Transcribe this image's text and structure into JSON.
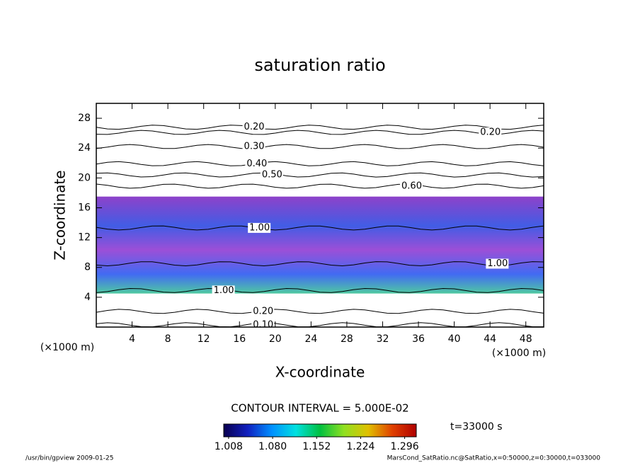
{
  "chart_data": {
    "type": "contour",
    "title": "saturation ratio",
    "x_label": "X-coordinate",
    "y_label": "Z-coordinate",
    "x_unit": "(×1000 m)",
    "y_unit": "(×1000 m)",
    "xlim": [
      0,
      50
    ],
    "xticks": [
      4,
      8,
      12,
      16,
      20,
      24,
      28,
      32,
      36,
      40,
      44,
      48
    ],
    "ylim": [
      0,
      30
    ],
    "yticks": [
      4,
      8,
      12,
      16,
      20,
      24,
      28
    ],
    "contour_interval": "CONTOUR INTERVAL = 5.000E-02",
    "time": "t=33000 s",
    "shaded_zlim": [
      4.5,
      17.5
    ],
    "contour_labels": [
      {
        "x": 16.5,
        "z": 26.8,
        "value": 0.2,
        "label": "0.20"
      },
      {
        "x": 42.9,
        "z": 26.1,
        "value": 0.2,
        "label": "0.20"
      },
      {
        "x": 16.5,
        "z": 24.2,
        "value": 0.3,
        "label": "0.30"
      },
      {
        "x": 16.8,
        "z": 21.9,
        "value": 0.4,
        "label": "0.40"
      },
      {
        "x": 18.5,
        "z": 20.4,
        "value": 0.5,
        "label": "0.50"
      },
      {
        "x": 34.1,
        "z": 18.9,
        "value": 0.6,
        "label": "0.60"
      },
      {
        "x": 17.1,
        "z": 13.3,
        "value": 1,
        "label": "1.00"
      },
      {
        "x": 43.7,
        "z": 8.5,
        "value": 1,
        "label": "1.00"
      },
      {
        "x": 13.1,
        "z": 4.9,
        "value": 1,
        "label": "1.00"
      },
      {
        "x": 17.5,
        "z": 2.1,
        "value": 0.2,
        "label": "0.20"
      },
      {
        "x": 17.5,
        "z": 0.3,
        "value": 0.1,
        "label": "0.10"
      }
    ],
    "colorbar": {
      "lim": [
        1.0,
        1.315
      ],
      "colors": [
        "#0a0050",
        "#1020c0",
        "#0090ff",
        "#00e0e0",
        "#00c040",
        "#90e020",
        "#e0c000",
        "#e04000",
        "#b00000"
      ],
      "ticks": [
        1.008,
        {
          "value": 1.08,
          "label": "1.080"
        },
        1.152,
        1.224,
        1.296
      ]
    },
    "footer_left": "/usr/bin/gpview  2009-01-25",
    "footer_right": "MarsCond_SatRatio.nc@SatRatio,x=0:50000,z=0:30000,t=033000"
  }
}
